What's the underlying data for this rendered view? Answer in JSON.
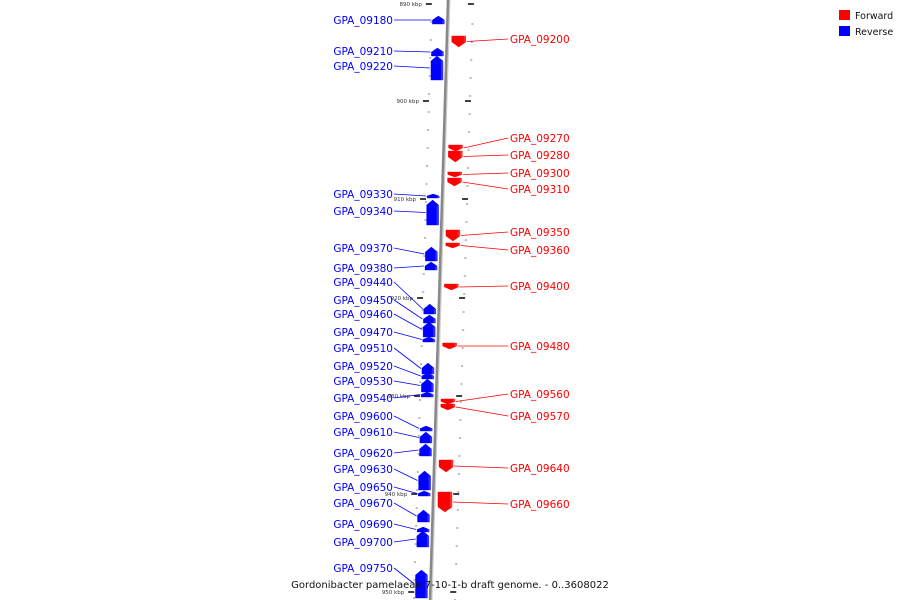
{
  "title": "Gordonibacter pamelaeae 7-10-1-b draft genome. - 0..3608022",
  "legend": [
    {
      "label": "Forward",
      "color": "#ff0000"
    },
    {
      "label": "Reverse",
      "color": "#0000ff"
    }
  ],
  "colors": {
    "forward": "#ff0000",
    "reverse": "#0000ff",
    "axis": "#888888"
  },
  "kbp_ticks": [
    "890 kbp",
    "900 kbp",
    "910 kbp",
    "920 kbp",
    "930 kbp",
    "940 kbp",
    "950 kbp"
  ],
  "reverse_genes": [
    "GPA_09180",
    "GPA_09210",
    "GPA_09220",
    "GPA_09330",
    "GPA_09340",
    "GPA_09370",
    "GPA_09380",
    "GPA_09440",
    "GPA_09450",
    "GPA_09460",
    "GPA_09470",
    "GPA_09510",
    "GPA_09520",
    "GPA_09530",
    "GPA_09540",
    "GPA_09600",
    "GPA_09610",
    "GPA_09620",
    "GPA_09630",
    "GPA_09650",
    "GPA_09670",
    "GPA_09690",
    "GPA_09700",
    "GPA_09750"
  ],
  "forward_genes": [
    "GPA_09200",
    "GPA_09270",
    "GPA_09280",
    "GPA_09300",
    "GPA_09310",
    "GPA_09350",
    "GPA_09360",
    "GPA_09400",
    "GPA_09480",
    "GPA_09560",
    "GPA_09570",
    "GPA_09640",
    "GPA_09660"
  ]
}
